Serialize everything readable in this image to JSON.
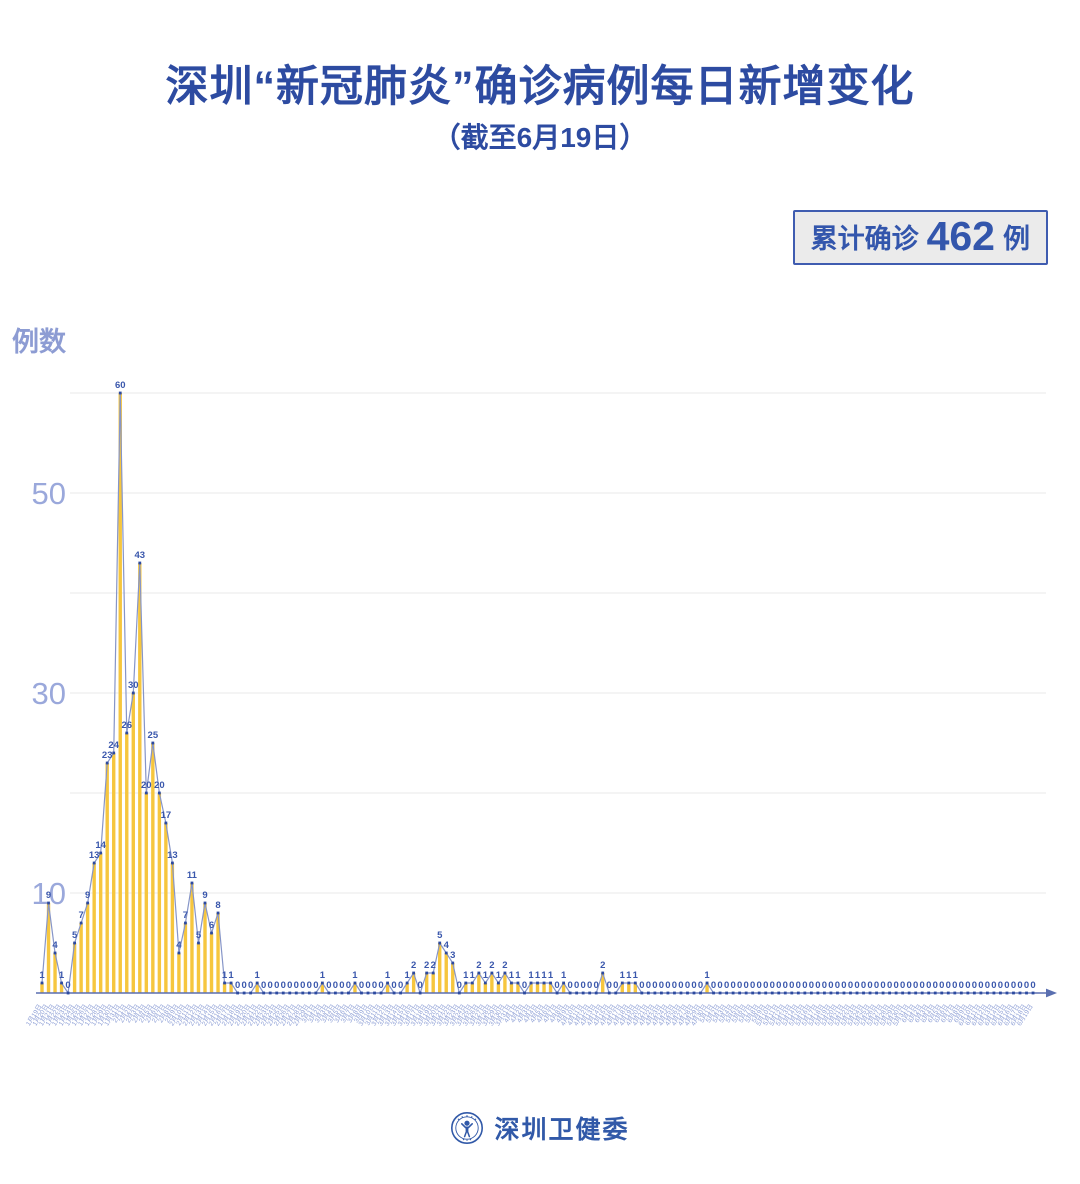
{
  "header": {
    "title": "深圳“新冠肺炎”确诊病例每日新增变化",
    "subtitle": "（截至6月19日）"
  },
  "badge": {
    "prefix": "累计确诊",
    "value": "462",
    "suffix": "例"
  },
  "footer": {
    "brand": "深圳卫健委"
  },
  "chart_data": {
    "type": "bar",
    "title": "深圳“新冠肺炎”确诊病例每日新增变化",
    "subtitle": "（截至6月19日）",
    "xlabel": "",
    "ylabel": "例数",
    "ylim": [
      0,
      60
    ],
    "grid_values": [
      10,
      20,
      30,
      40,
      50,
      60
    ],
    "ytick_values": [
      10,
      30,
      50
    ],
    "grid": "on",
    "legend": "none",
    "total_confirmed": 462,
    "categories": [
      "1月19日",
      "1月20日",
      "1月21日",
      "1月22日",
      "1月23日",
      "1月24日",
      "1月25日",
      "1月26日",
      "1月27日",
      "1月28日",
      "1月29日",
      "1月30日",
      "1月31日",
      "2月1日",
      "2月2日",
      "2月3日",
      "2月4日",
      "2月5日",
      "2月6日",
      "2月7日",
      "2月8日",
      "2月9日",
      "2月10日",
      "2月11日",
      "2月12日",
      "2月13日",
      "2月14日",
      "2月15日",
      "2月16日",
      "2月17日",
      "2月18日",
      "2月19日",
      "2月20日",
      "2月21日",
      "2月22日",
      "2月23日",
      "2月24日",
      "2月25日",
      "2月26日",
      "2月27日",
      "2月28日",
      "2月29日",
      "3月1日",
      "3月2日",
      "3月3日",
      "3月4日",
      "3月5日",
      "3月6日",
      "3月7日",
      "3月8日",
      "3月9日",
      "3月10日",
      "3月11日",
      "3月12日",
      "3月13日",
      "3月14日",
      "3月15日",
      "3月16日",
      "3月17日",
      "3月18日",
      "3月19日",
      "3月20日",
      "3月21日",
      "3月22日",
      "3月23日",
      "3月24日",
      "3月25日",
      "3月26日",
      "3月27日",
      "3月28日",
      "3月29日",
      "3月30日",
      "3月31日",
      "4月1日",
      "4月2日",
      "4月3日",
      "4月4日",
      "4月5日",
      "4月6日",
      "4月7日",
      "4月8日",
      "4月9日",
      "4月10日",
      "4月11日",
      "4月12日",
      "4月13日",
      "4月14日",
      "4月15日",
      "4月16日",
      "4月17日",
      "4月18日",
      "4月19日",
      "4月20日",
      "4月21日",
      "4月22日",
      "4月23日",
      "4月24日",
      "4月25日",
      "4月26日",
      "4月27日",
      "4月28日",
      "4月29日",
      "4月30日",
      "5月1日",
      "5月2日",
      "5月3日",
      "5月4日",
      "5月5日",
      "5月6日",
      "5月7日",
      "5月8日",
      "5月9日",
      "5月10日",
      "5月11日",
      "5月12日",
      "5月13日",
      "5月14日",
      "5月15日",
      "5月16日",
      "5月17日",
      "5月18日",
      "5月19日",
      "5月20日",
      "5月21日",
      "5月22日",
      "5月23日",
      "5月24日",
      "5月25日",
      "5月26日",
      "5月27日",
      "5月28日",
      "5月29日",
      "5月30日",
      "5月31日",
      "6月1日",
      "6月2日",
      "6月3日",
      "6月4日",
      "6月5日",
      "6月6日",
      "6月7日",
      "6月8日",
      "6月9日",
      "6月10日",
      "6月11日",
      "6月12日",
      "6月13日",
      "6月14日",
      "6月15日",
      "6月16日",
      "6月17日",
      "6月18日",
      "6月19日"
    ],
    "values": [
      1,
      9,
      4,
      1,
      0,
      5,
      7,
      9,
      13,
      14,
      23,
      24,
      60,
      26,
      30,
      43,
      20,
      25,
      20,
      17,
      13,
      4,
      7,
      11,
      5,
      9,
      6,
      8,
      1,
      1,
      0,
      0,
      0,
      1,
      0,
      0,
      0,
      0,
      0,
      0,
      0,
      0,
      0,
      1,
      0,
      0,
      0,
      0,
      1,
      0,
      0,
      0,
      0,
      1,
      0,
      0,
      1,
      2,
      0,
      2,
      2,
      5,
      4,
      3,
      0,
      1,
      1,
      2,
      1,
      2,
      1,
      2,
      1,
      1,
      0,
      1,
      1,
      1,
      1,
      0,
      1,
      0,
      0,
      0,
      0,
      0,
      2,
      0,
      0,
      1,
      1,
      1,
      0,
      0,
      0,
      0,
      0,
      0,
      0,
      0,
      0,
      0,
      1,
      0,
      0,
      0,
      0,
      0,
      0,
      0,
      0,
      0,
      0,
      0,
      0,
      0,
      0,
      0,
      0,
      0,
      0,
      0,
      0,
      0,
      0,
      0,
      0,
      0,
      0,
      0,
      0,
      0,
      0,
      0,
      0,
      0,
      0,
      0,
      0,
      0,
      0,
      0,
      0,
      0,
      0,
      0,
      0,
      0,
      0,
      0,
      0,
      0,
      0
    ]
  },
  "colors": {
    "title_text": "#2D4BA1",
    "badge_text": "#3356AC",
    "badge_border": "#3F5CB0",
    "badge_bg": "#EBEBEB",
    "ylabel_text": "#8D9CD3",
    "axis_tick_text": "#9AA8DB",
    "date_text": "#8FA0D6",
    "grid": "#E9E9E9",
    "axis_line": "#5A6FB0",
    "bar": "#F6C63E",
    "line": "#8695C8",
    "marker": "#2C4AA0",
    "value_label": "#3A57AC",
    "brand_text": "#3159A8"
  }
}
